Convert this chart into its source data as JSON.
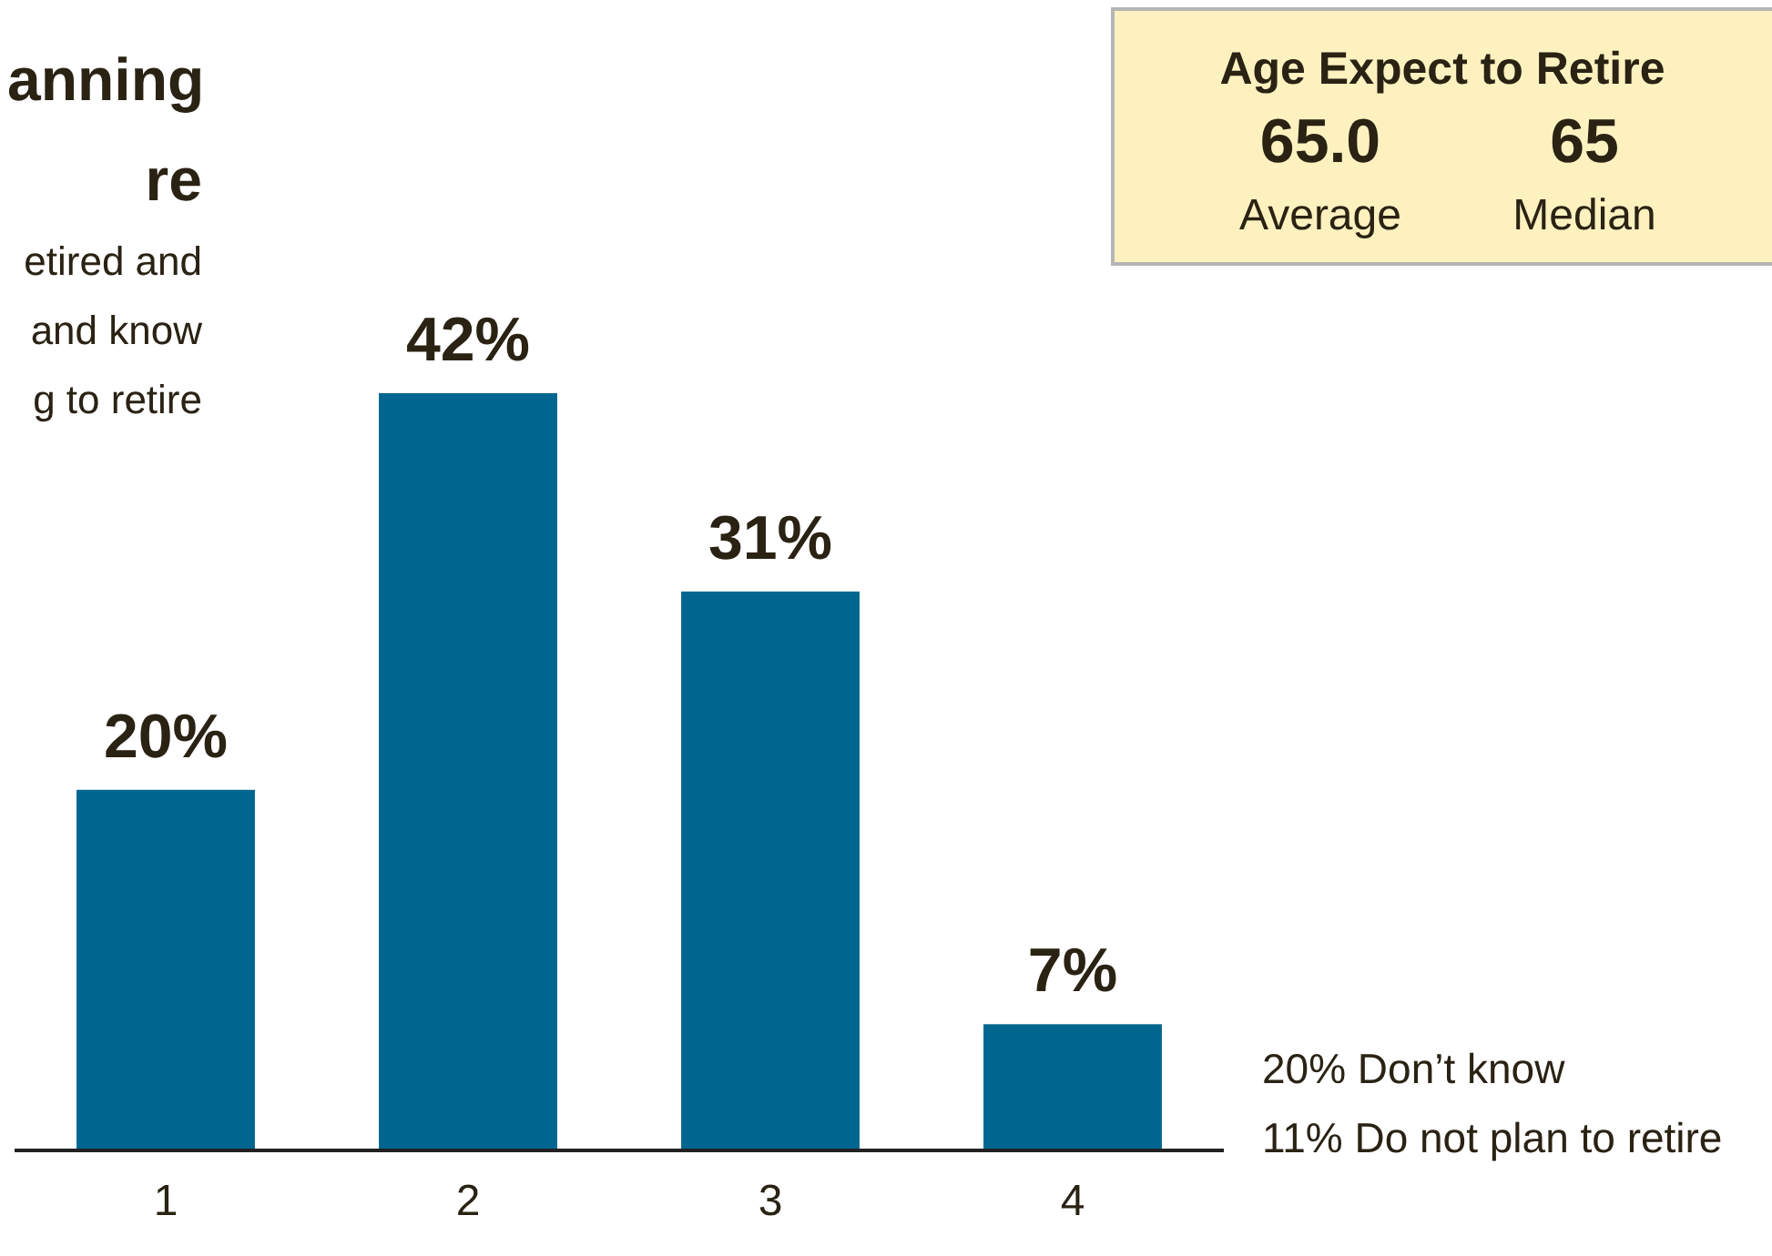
{
  "chart_data": [
    {
      "type": "bar",
      "title": "anning\nre",
      "subtitle": "etired and\nand know\ng to retire",
      "categories": [
        "1",
        "2",
        "3",
        "4"
      ],
      "values": [
        20,
        42,
        31,
        7
      ],
      "value_labels": [
        "20%",
        "42%",
        "31%",
        "7%"
      ],
      "color": "#00668f",
      "annotations": [
        "20% Don’t know",
        "11% Do not plan to retire"
      ]
    },
    {
      "type": "other",
      "title": "Age Expect to Retire",
      "annotations": [
        "65.0",
        "Average",
        "65",
        "Median"
      ]
    }
  ]
}
